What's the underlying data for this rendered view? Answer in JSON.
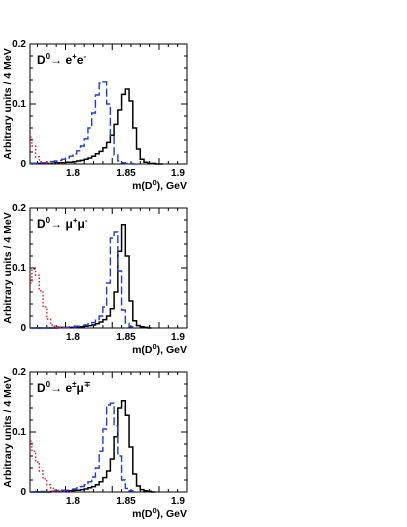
{
  "chart_data": [
    {
      "type": "line",
      "decay_label": "D0→ e+e-",
      "label_parts": {
        "main": "D",
        "sup1": "0",
        "arrow": "→ e",
        "sup2": "+",
        "mid": "e",
        "sup3": "-"
      },
      "xlabel": "m(D0), GeV",
      "ylabel": "Arbitrary units / 4 MeV",
      "xlim": [
        1.762,
        1.93
      ],
      "ylim": [
        0,
        0.2
      ],
      "xticks": [
        "1.8",
        "1.85",
        "1.9"
      ],
      "yticks": [
        "0",
        "0.1",
        "0.2"
      ],
      "bin_width": 0.004,
      "series": [
        {
          "style": "solid",
          "color": "#000000",
          "x": [
            1.762,
            1.766,
            1.77,
            1.774,
            1.778,
            1.782,
            1.786,
            1.79,
            1.794,
            1.798,
            1.802,
            1.806,
            1.81,
            1.814,
            1.818,
            1.822,
            1.826,
            1.83,
            1.834,
            1.838,
            1.842,
            1.846,
            1.85,
            1.854,
            1.858,
            1.862,
            1.866,
            1.87,
            1.874,
            1.878,
            1.882,
            1.886,
            1.89,
            1.894,
            1.898,
            1.902
          ],
          "values": [
            0.001,
            0.001,
            0.001,
            0.001,
            0.001,
            0.001,
            0.001,
            0.002,
            0.002,
            0.002,
            0.003,
            0.003,
            0.004,
            0.005,
            0.006,
            0.008,
            0.01,
            0.013,
            0.017,
            0.021,
            0.027,
            0.036,
            0.048,
            0.066,
            0.09,
            0.116,
            0.125,
            0.105,
            0.06,
            0.025,
            0.008,
            0.003,
            0.001,
            0.001,
            0.0,
            0.0
          ]
        },
        {
          "style": "dashed",
          "color": "#1f3bd6",
          "x": [
            1.762,
            1.766,
            1.77,
            1.774,
            1.778,
            1.782,
            1.786,
            1.79,
            1.794,
            1.798,
            1.802,
            1.806,
            1.81,
            1.814,
            1.818,
            1.822,
            1.826,
            1.83,
            1.834,
            1.838,
            1.842,
            1.846,
            1.85,
            1.854,
            1.858,
            1.862,
            1.866,
            1.87,
            1.874,
            1.878
          ],
          "values": [
            0.001,
            0.001,
            0.001,
            0.002,
            0.002,
            0.003,
            0.004,
            0.005,
            0.006,
            0.008,
            0.01,
            0.013,
            0.017,
            0.022,
            0.03,
            0.042,
            0.06,
            0.085,
            0.115,
            0.135,
            0.137,
            0.1,
            0.045,
            0.015,
            0.005,
            0.002,
            0.001,
            0.001,
            0.0,
            0.0
          ]
        },
        {
          "style": "dotted",
          "color": "#e0161b",
          "x": [
            1.762,
            1.766,
            1.77,
            1.774,
            1.778,
            1.782,
            1.786,
            1.79,
            1.794,
            1.798
          ],
          "values": [
            0.045,
            0.03,
            0.012,
            0.004,
            0.002,
            0.001,
            0.001,
            0.001,
            0.001,
            0.0
          ]
        }
      ]
    },
    {
      "type": "line",
      "decay_label": "D0→ μ+μ-",
      "label_parts": {
        "main": "D",
        "sup1": "0",
        "arrow": "→ μ",
        "sup2": "+",
        "mid": "μ",
        "sup3": "-"
      },
      "xlabel": "m(D0), GeV",
      "ylabel": "Arbitrary units / 4 MeV",
      "xlim": [
        1.762,
        1.93
      ],
      "ylim": [
        0,
        0.2
      ],
      "xticks": [
        "1.8",
        "1.85",
        "1.9"
      ],
      "yticks": [
        "0",
        "0.1",
        "0.2"
      ],
      "bin_width": 0.004,
      "series": [
        {
          "style": "solid",
          "color": "#000000",
          "x": [
            1.762,
            1.766,
            1.77,
            1.774,
            1.778,
            1.782,
            1.786,
            1.79,
            1.794,
            1.798,
            1.802,
            1.806,
            1.81,
            1.814,
            1.818,
            1.822,
            1.826,
            1.83,
            1.834,
            1.838,
            1.842,
            1.846,
            1.85,
            1.854,
            1.858,
            1.862,
            1.866,
            1.87,
            1.874,
            1.878,
            1.882,
            1.886,
            1.89
          ],
          "values": [
            0.0,
            0.0,
            0.0,
            0.0,
            0.0,
            0.0,
            0.0,
            0.0,
            0.001,
            0.001,
            0.001,
            0.001,
            0.001,
            0.002,
            0.002,
            0.003,
            0.004,
            0.005,
            0.007,
            0.01,
            0.014,
            0.02,
            0.032,
            0.06,
            0.128,
            0.172,
            0.12,
            0.045,
            0.012,
            0.004,
            0.002,
            0.001,
            0.0
          ]
        },
        {
          "style": "dashed",
          "color": "#1f3bd6",
          "x": [
            1.762,
            1.766,
            1.77,
            1.774,
            1.778,
            1.782,
            1.786,
            1.79,
            1.794,
            1.798,
            1.802,
            1.806,
            1.81,
            1.814,
            1.818,
            1.822,
            1.826,
            1.83,
            1.834,
            1.838,
            1.842,
            1.846,
            1.85,
            1.854,
            1.858,
            1.862,
            1.866,
            1.87,
            1.874
          ],
          "values": [
            0.0,
            0.0,
            0.0,
            0.0,
            0.0,
            0.0,
            0.001,
            0.001,
            0.001,
            0.001,
            0.001,
            0.002,
            0.002,
            0.003,
            0.004,
            0.005,
            0.007,
            0.009,
            0.013,
            0.02,
            0.035,
            0.075,
            0.15,
            0.16,
            0.095,
            0.03,
            0.008,
            0.002,
            0.0
          ]
        },
        {
          "style": "dotted",
          "color": "#e0161b",
          "x": [
            1.762,
            1.766,
            1.77,
            1.774,
            1.778,
            1.782,
            1.786,
            1.79,
            1.794,
            1.798,
            1.802
          ],
          "values": [
            0.075,
            0.098,
            0.088,
            0.062,
            0.035,
            0.015,
            0.005,
            0.002,
            0.001,
            0.0,
            0.0
          ]
        }
      ]
    },
    {
      "type": "line",
      "decay_label": "D0→ e±μ∓",
      "label_parts": {
        "main": "D",
        "sup1": "0",
        "arrow": "→ e",
        "sup2": "±",
        "mid": "μ",
        "sup3": "∓"
      },
      "xlabel": "m(D0), GeV",
      "ylabel": "Arbitrary units / 4 MeV",
      "xlim": [
        1.762,
        1.93
      ],
      "ylim": [
        0,
        0.2
      ],
      "xticks": [
        "1.8",
        "1.85",
        "1.9"
      ],
      "yticks": [
        "0",
        "0.1",
        "0.2"
      ],
      "bin_width": 0.004,
      "series": [
        {
          "style": "solid",
          "color": "#000000",
          "x": [
            1.762,
            1.766,
            1.77,
            1.774,
            1.778,
            1.782,
            1.786,
            1.79,
            1.794,
            1.798,
            1.802,
            1.806,
            1.81,
            1.814,
            1.818,
            1.822,
            1.826,
            1.83,
            1.834,
            1.838,
            1.842,
            1.846,
            1.85,
            1.854,
            1.858,
            1.862,
            1.866,
            1.87,
            1.874,
            1.878,
            1.882,
            1.886,
            1.89,
            1.894
          ],
          "values": [
            0.0,
            0.0,
            0.0,
            0.0,
            0.0,
            0.0,
            0.001,
            0.001,
            0.001,
            0.001,
            0.002,
            0.002,
            0.003,
            0.003,
            0.004,
            0.005,
            0.007,
            0.009,
            0.012,
            0.017,
            0.024,
            0.035,
            0.055,
            0.092,
            0.14,
            0.152,
            0.128,
            0.075,
            0.03,
            0.01,
            0.004,
            0.002,
            0.001,
            0.0
          ]
        },
        {
          "style": "dashed",
          "color": "#1f3bd6",
          "x": [
            1.762,
            1.766,
            1.77,
            1.774,
            1.778,
            1.782,
            1.786,
            1.79,
            1.794,
            1.798,
            1.802,
            1.806,
            1.81,
            1.814,
            1.818,
            1.822,
            1.826,
            1.83,
            1.834,
            1.838,
            1.842,
            1.846,
            1.85,
            1.854,
            1.858,
            1.862,
            1.866,
            1.87,
            1.874
          ],
          "values": [
            0.0,
            0.0,
            0.001,
            0.001,
            0.001,
            0.001,
            0.001,
            0.002,
            0.002,
            0.003,
            0.003,
            0.004,
            0.005,
            0.007,
            0.009,
            0.012,
            0.017,
            0.025,
            0.04,
            0.068,
            0.105,
            0.145,
            0.148,
            0.11,
            0.06,
            0.02,
            0.006,
            0.002,
            0.0
          ]
        },
        {
          "style": "dotted",
          "color": "#e0161b",
          "x": [
            1.762,
            1.766,
            1.77,
            1.774,
            1.778,
            1.782,
            1.786,
            1.79,
            1.794,
            1.798,
            1.802,
            1.806
          ],
          "values": [
            0.085,
            0.068,
            0.05,
            0.035,
            0.022,
            0.012,
            0.006,
            0.003,
            0.001,
            0.001,
            0.0,
            0.0
          ]
        }
      ]
    }
  ]
}
